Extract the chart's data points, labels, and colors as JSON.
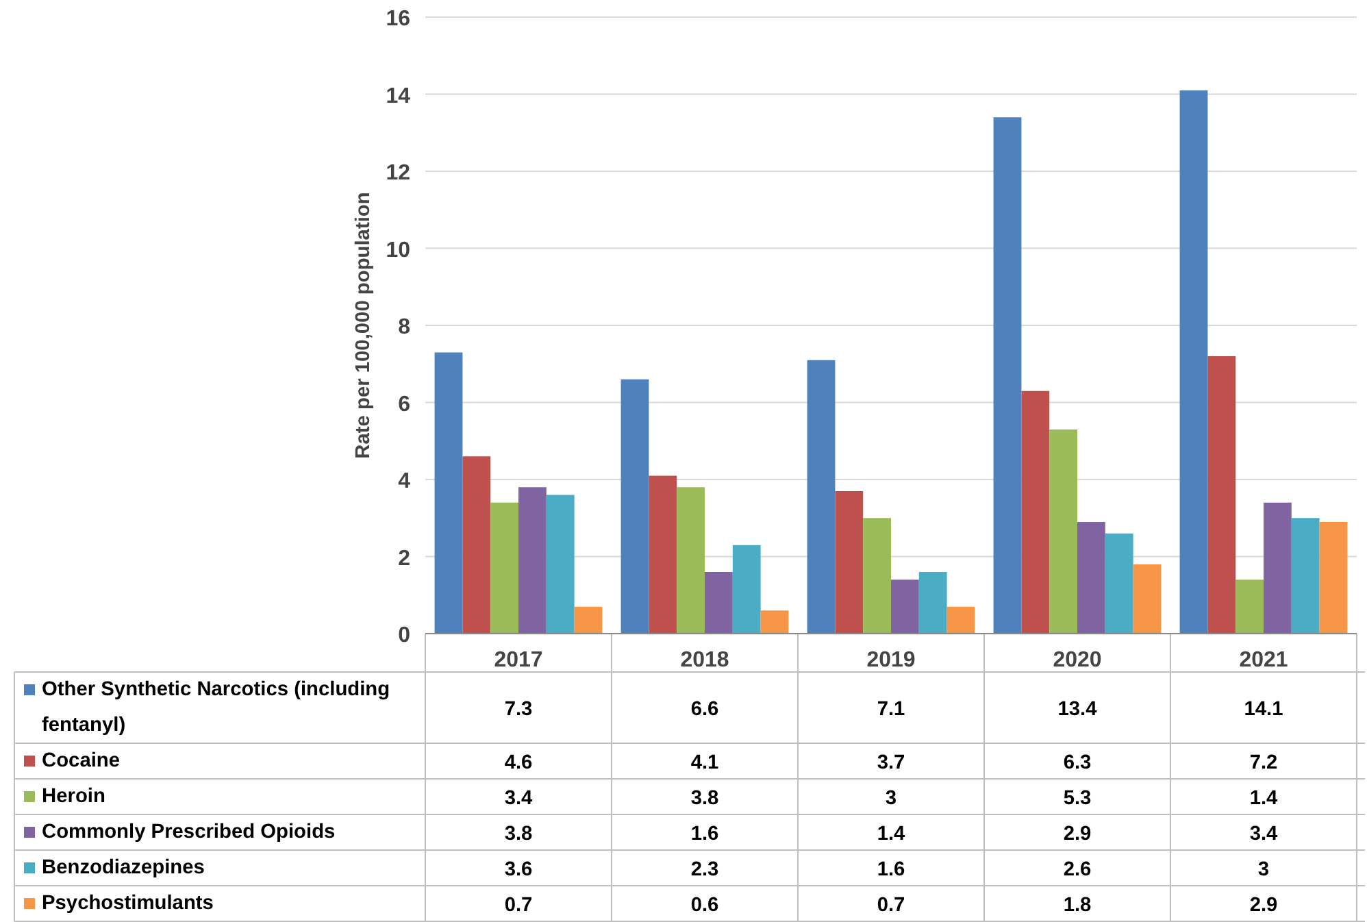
{
  "chart_data": {
    "type": "bar",
    "ylabel": "Rate per 100,000 population",
    "categories": [
      "2017",
      "2018",
      "2019",
      "2020",
      "2021"
    ],
    "ylim": [
      0,
      16
    ],
    "yticks": [
      0,
      2,
      4,
      6,
      8,
      10,
      12,
      14,
      16
    ],
    "grid": "y",
    "data_labels": true,
    "legend": "bottom left",
    "series": [
      {
        "name": "Other Synthetic Narcotics (including fentanyl)",
        "color": "#4f81bd",
        "values": [
          7.3,
          6.6,
          7.1,
          13.4,
          14.1
        ]
      },
      {
        "name": "Cocaine",
        "color": "#c0504d",
        "values": [
          4.6,
          4.1,
          3.7,
          6.3,
          7.2
        ]
      },
      {
        "name": "Heroin",
        "color": "#9bbb59",
        "values": [
          3.4,
          3.8,
          3,
          5.3,
          1.4
        ]
      },
      {
        "name": "Commonly Prescribed Opioids",
        "color": "#8064a2",
        "values": [
          3.8,
          1.6,
          1.4,
          2.9,
          3.4
        ]
      },
      {
        "name": "Benzodiazepines",
        "color": "#4bacc6",
        "values": [
          3.6,
          2.3,
          1.6,
          2.6,
          3
        ]
      },
      {
        "name": "Psychostimulants",
        "color": "#f79646",
        "values": [
          0.7,
          0.6,
          0.7,
          1.8,
          2.9
        ]
      }
    ]
  }
}
